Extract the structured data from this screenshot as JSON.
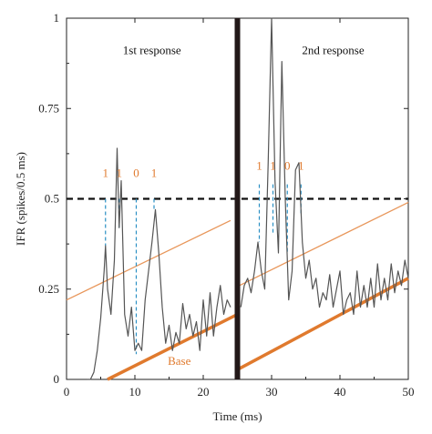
{
  "chart_data": {
    "type": "line",
    "title": "",
    "xlabel": "Time (ms)",
    "ylabel": "IFR (spikes/0.5 ms)",
    "xlim": [
      0,
      50
    ],
    "ylim": [
      0,
      1
    ],
    "xticks": [
      0,
      10,
      20,
      30,
      40,
      50
    ],
    "yticks": [
      0,
      0.25,
      0.5,
      0.75,
      1
    ],
    "ytick_labels": [
      "0",
      "0.25",
      "0.5",
      "0.75",
      "1"
    ],
    "grid": false,
    "series": [
      {
        "x": [
          3,
          3.5,
          4,
          4.5,
          5,
          5.5,
          5.7,
          6,
          6.5,
          7,
          7.4,
          7.7,
          8,
          8.5,
          9,
          9.5,
          10,
          10.5,
          11,
          11.5,
          12,
          12.5,
          13,
          13.5,
          14,
          14.5,
          15,
          15.5,
          16,
          16.5,
          17,
          17.5,
          18,
          18.5,
          19,
          19.5,
          20,
          20.5,
          21,
          21.5,
          22,
          22.5,
          23,
          23.5,
          24
        ],
        "y": [
          0,
          0,
          0.02,
          0.08,
          0.17,
          0.3,
          0.37,
          0.25,
          0.18,
          0.33,
          0.64,
          0.42,
          0.55,
          0.18,
          0.12,
          0.2,
          0.08,
          0.1,
          0.08,
          0.22,
          0.3,
          0.38,
          0.47,
          0.35,
          0.2,
          0.1,
          0.15,
          0.08,
          0.13,
          0.1,
          0.21,
          0.14,
          0.18,
          0.12,
          0.16,
          0.08,
          0.22,
          0.12,
          0.24,
          0.12,
          0.2,
          0.26,
          0.18,
          0.22,
          0.2
        ]
      },
      {
        "x": [
          25.5,
          26,
          26.5,
          27,
          27.5,
          28,
          28.5,
          29,
          29.5,
          30,
          30.5,
          31,
          31.5,
          32,
          32.5,
          33,
          33.5,
          34,
          34.5,
          35,
          35.5,
          36,
          36.5,
          37,
          37.5,
          38,
          38.5,
          39,
          39.5,
          40,
          40.5,
          41,
          41.5,
          42,
          42.5,
          43,
          43.5,
          44,
          44.5,
          45,
          45.5,
          46,
          46.5,
          47,
          47.5,
          48,
          48.5,
          49,
          49.5,
          50
        ],
        "y": [
          0.2,
          0.26,
          0.28,
          0.24,
          0.3,
          0.38,
          0.3,
          0.25,
          0.6,
          1.0,
          0.55,
          0.35,
          0.88,
          0.5,
          0.22,
          0.3,
          0.58,
          0.6,
          0.38,
          0.28,
          0.33,
          0.25,
          0.28,
          0.2,
          0.24,
          0.22,
          0.29,
          0.2,
          0.25,
          0.3,
          0.18,
          0.22,
          0.24,
          0.18,
          0.3,
          0.2,
          0.26,
          0.2,
          0.28,
          0.2,
          0.32,
          0.22,
          0.28,
          0.22,
          0.32,
          0.24,
          0.3,
          0.26,
          0.33,
          0.28
        ]
      }
    ],
    "threshold": {
      "y": 0.5
    },
    "stimulus_bar": {
      "x": 25
    },
    "annotations": [
      {
        "text": "1st response",
        "x": 12.5,
        "y": 0.9
      },
      {
        "text": "2nd response",
        "x": 39,
        "y": 0.9
      },
      {
        "text": "Base",
        "x": 16.5,
        "y": 0.04
      }
    ],
    "spike_labels": [
      {
        "text": "1",
        "x": 5.7,
        "y": 0.56
      },
      {
        "text": "1",
        "x": 7.7,
        "y": 0.56
      },
      {
        "text": "0",
        "x": 10.2,
        "y": 0.56
      },
      {
        "text": "1",
        "x": 12.8,
        "y": 0.56
      },
      {
        "text": "1",
        "x": 28.2,
        "y": 0.58
      },
      {
        "text": "1",
        "x": 30.2,
        "y": 0.58
      },
      {
        "text": "0",
        "x": 32.3,
        "y": 0.58
      },
      {
        "text": "1",
        "x": 34.3,
        "y": 0.58
      }
    ],
    "spike_markers": [
      {
        "x": 5.7,
        "y_from": 0.5,
        "y_to": 0.37
      },
      {
        "x": 7.7,
        "y_from": 0.5,
        "y_to": 0.42
      },
      {
        "x": 10.2,
        "y_from": 0.5,
        "y_to": 0.07
      },
      {
        "x": 12.8,
        "y_from": 0.5,
        "y_to": 0.47
      },
      {
        "x": 28.2,
        "y_from": 0.54,
        "y_to": 0.38
      },
      {
        "x": 30.2,
        "y_from": 0.54,
        "y_to": 0.4
      },
      {
        "x": 32.3,
        "y_from": 0.54,
        "y_to": 0.35
      },
      {
        "x": 34.3,
        "y_from": 0.54,
        "y_to": 0.46
      }
    ],
    "base_lines": [
      {
        "x": [
          6,
          25
        ],
        "y": [
          0,
          0.18
        ]
      },
      {
        "x": [
          25.3,
          50
        ],
        "y": [
          0.03,
          0.28
        ]
      }
    ],
    "threshold_lines": [
      {
        "x": [
          0,
          24
        ],
        "y": [
          0.22,
          0.44
        ]
      },
      {
        "x": [
          25.3,
          50
        ],
        "y": [
          0.26,
          0.49
        ]
      }
    ],
    "colors": {
      "trace": "#555555",
      "base": "#e07a2e",
      "threshold_line": "#e8965a",
      "spike_marker": "#2a8fc4",
      "dashed_threshold": "#111111",
      "stimulus_bar": "#221818"
    }
  }
}
